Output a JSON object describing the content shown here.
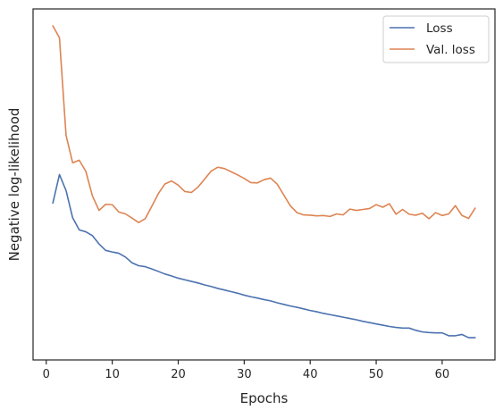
{
  "chart_data": {
    "type": "line",
    "title": "",
    "xlabel": "Epochs",
    "ylabel": "Negative log-likelihood",
    "xlim": [
      -2,
      68
    ],
    "ylim": [
      0,
      100
    ],
    "xticks": [
      0,
      10,
      20,
      30,
      40,
      50,
      60
    ],
    "yticks_shown": false,
    "grid": false,
    "legend_position": "top-right",
    "x": [
      1,
      2,
      3,
      4,
      5,
      6,
      7,
      8,
      9,
      10,
      11,
      12,
      13,
      14,
      15,
      16,
      17,
      18,
      19,
      20,
      21,
      22,
      23,
      24,
      25,
      26,
      27,
      28,
      29,
      30,
      31,
      32,
      33,
      34,
      35,
      36,
      37,
      38,
      39,
      40,
      41,
      42,
      43,
      44,
      45,
      46,
      47,
      48,
      49,
      50,
      51,
      52,
      53,
      54,
      55,
      56,
      57,
      58,
      59,
      60,
      61,
      62,
      63,
      64,
      65
    ],
    "series": [
      {
        "name": "Loss",
        "color": "#4c72b0",
        "values": [
          44.6,
          53.5,
          48.5,
          40.0,
          36.2,
          35.6,
          34.4,
          31.8,
          29.8,
          29.3,
          28.9,
          27.7,
          25.9,
          25.0,
          24.7,
          24.0,
          23.2,
          22.4,
          21.8,
          21.1,
          20.6,
          20.1,
          19.6,
          19.0,
          18.5,
          17.9,
          17.4,
          16.9,
          16.4,
          15.8,
          15.3,
          14.9,
          14.4,
          14.0,
          13.4,
          12.9,
          12.4,
          12.0,
          11.5,
          11.0,
          10.6,
          10.1,
          9.7,
          9.3,
          8.9,
          8.5,
          8.1,
          7.6,
          7.2,
          6.8,
          6.4,
          6.0,
          5.7,
          5.5,
          5.5,
          4.8,
          4.3,
          4.1,
          4.0,
          4.0,
          3.1,
          3.1,
          3.5,
          2.5,
          2.5
        ]
      },
      {
        "name": "Val. loss",
        "color": "#dd8452",
        "values": [
          100.0,
          96.3,
          65.8,
          57.2,
          58.0,
          54.5,
          46.8,
          42.3,
          44.2,
          44.1,
          41.8,
          41.2,
          39.9,
          38.5,
          39.7,
          43.6,
          47.6,
          50.6,
          51.5,
          50.2,
          48.2,
          47.9,
          49.6,
          52.1,
          54.6,
          55.8,
          55.4,
          54.4,
          53.4,
          52.3,
          51.0,
          50.9,
          51.9,
          52.4,
          50.5,
          47.1,
          43.7,
          41.6,
          40.9,
          40.8,
          40.6,
          40.7,
          40.4,
          41.2,
          40.9,
          42.7,
          42.3,
          42.6,
          42.9,
          44.1,
          43.3,
          44.4,
          41.1,
          42.6,
          41.1,
          40.8,
          41.4,
          39.7,
          41.6,
          40.7,
          41.2,
          43.8,
          40.7,
          39.8,
          43.0
        ]
      }
    ]
  }
}
